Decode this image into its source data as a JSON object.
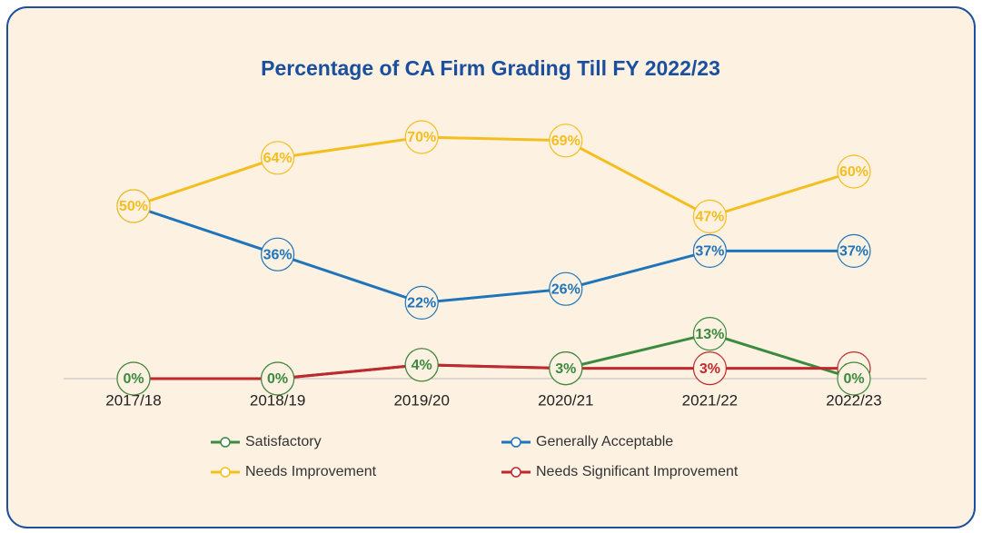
{
  "chart_data": {
    "type": "line",
    "title": "Percentage of CA Firm Grading Till FY 2022/23",
    "categories": [
      "2017/18",
      "2018/19",
      "2019/20",
      "2020/21",
      "2021/22",
      "2022/23"
    ],
    "series": [
      {
        "name": "Satisfactory",
        "color": "#3b8a3e",
        "values": [
          0,
          0,
          4,
          3,
          13,
          0
        ],
        "value_labels": [
          "0%",
          "0%",
          "4%",
          "3%",
          "13%",
          "0%"
        ]
      },
      {
        "name": "Generally Acceptable",
        "color": "#1f74ba",
        "values": [
          50,
          36,
          22,
          26,
          37,
          37
        ],
        "value_labels": [
          "50%",
          "36%",
          "22%",
          "26%",
          "37%",
          "37%"
        ]
      },
      {
        "name": "Needs Improvement",
        "color": "#f4be1f",
        "values": [
          50,
          64,
          70,
          69,
          47,
          60
        ],
        "value_labels": [
          "50%",
          "64%",
          "70%",
          "69%",
          "47%",
          "60%"
        ]
      },
      {
        "name": "Needs Significant Improvement",
        "color": "#c1282e",
        "values": [
          0,
          0,
          4,
          3,
          3,
          3
        ],
        "value_labels": [
          "0%",
          "0%",
          "4%",
          "3%",
          "3%",
          "3%"
        ]
      }
    ]
  }
}
